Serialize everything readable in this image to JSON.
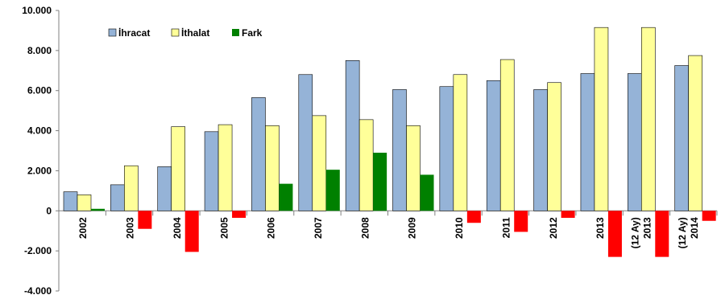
{
  "chart_data": {
    "type": "bar",
    "title": "",
    "xlabel": "",
    "ylabel": "",
    "ylim": [
      -4000,
      10000
    ],
    "yticks": [
      -4000,
      -2000,
      0,
      2000,
      4000,
      6000,
      8000,
      10000
    ],
    "ytick_labels": [
      "-4.000",
      "-2.000",
      "0",
      "2.000",
      "4.000",
      "6.000",
      "8.000",
      "10.000"
    ],
    "grid": false,
    "legend_position": "top-left",
    "categories": [
      [
        "2002"
      ],
      [
        "2003"
      ],
      [
        "2004"
      ],
      [
        "2005"
      ],
      [
        "2006"
      ],
      [
        "2007"
      ],
      [
        "2008"
      ],
      [
        "2009"
      ],
      [
        "2010"
      ],
      [
        "2011"
      ],
      [
        "2012"
      ],
      [
        "2013"
      ],
      [
        "2013",
        "(12 Ay)"
      ],
      [
        "2014",
        "(12 Ay)"
      ]
    ],
    "series": [
      {
        "name": "İhracat",
        "color": "#95B3D7",
        "values": [
          950,
          1300,
          2200,
          3950,
          5650,
          6800,
          7500,
          6050,
          6200,
          6500,
          6050,
          6850,
          6850,
          7250
        ]
      },
      {
        "name": "İthalat",
        "color": "#FFFF99",
        "values": [
          800,
          2250,
          4200,
          4300,
          4250,
          4750,
          4550,
          4250,
          6800,
          7550,
          6400,
          9150,
          9150,
          7750
        ]
      },
      {
        "name": "Fark",
        "color": "#008000",
        "negative_color": "#FF0000",
        "values": [
          100,
          -900,
          -2050,
          -350,
          1350,
          2050,
          2900,
          1800,
          -600,
          -1050,
          -350,
          -2300,
          -2300,
          -500
        ]
      }
    ]
  }
}
